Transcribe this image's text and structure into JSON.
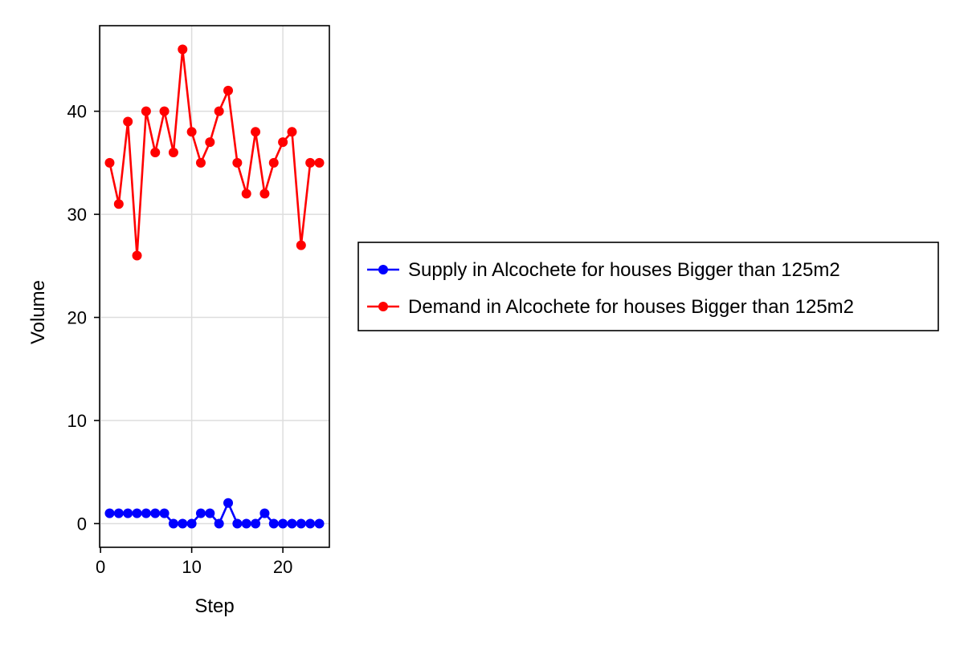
{
  "chart_data": {
    "type": "line",
    "xlabel": "Step",
    "ylabel": "Volume",
    "xlim": [
      -0.1,
      25.1
    ],
    "ylim": [
      -2.3,
      48.3
    ],
    "xticks": [
      0,
      10,
      20
    ],
    "yticks": [
      0,
      10,
      20,
      30,
      40
    ],
    "grid": true,
    "legend_position": "right",
    "x": [
      1,
      2,
      3,
      4,
      5,
      6,
      7,
      8,
      9,
      10,
      11,
      12,
      13,
      14,
      15,
      16,
      17,
      18,
      19,
      20,
      21,
      22,
      23,
      24
    ],
    "series": [
      {
        "name": "Supply in Alcochete for houses Bigger than 125m2",
        "color": "#0000ff",
        "marker": "circle",
        "values": [
          1,
          1,
          1,
          1,
          1,
          1,
          1,
          0,
          0,
          0,
          1,
          1,
          0,
          2,
          0,
          0,
          0,
          1,
          0,
          0,
          0,
          0,
          0,
          0
        ]
      },
      {
        "name": "Demand in Alcochete for houses Bigger than 125m2",
        "color": "#ff0000",
        "marker": "circle",
        "values": [
          35,
          31,
          39,
          26,
          40,
          36,
          40,
          36,
          46,
          38,
          35,
          37,
          40,
          42,
          35,
          32,
          38,
          32,
          35,
          37,
          38,
          27,
          35,
          35
        ]
      }
    ]
  }
}
